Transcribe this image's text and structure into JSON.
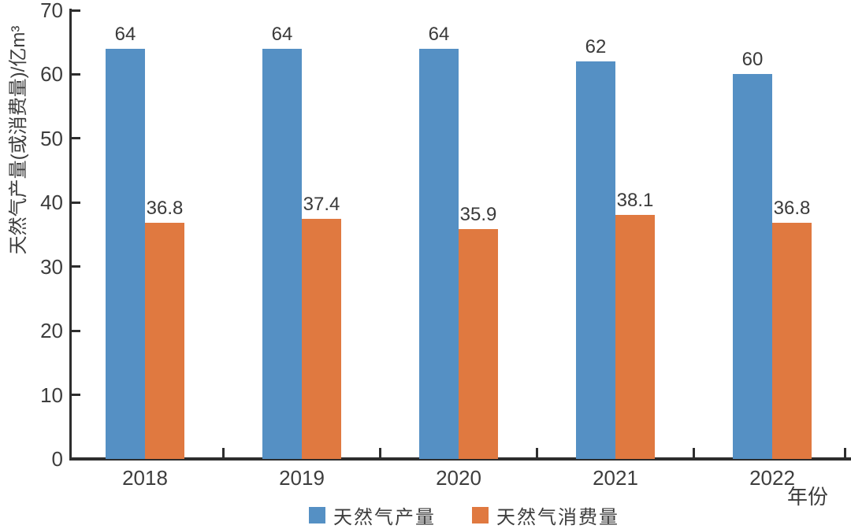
{
  "chart_data": {
    "type": "bar",
    "title": "",
    "categories": [
      "2018",
      "2019",
      "2020",
      "2021",
      "2022"
    ],
    "series": [
      {
        "name": "天然气产量",
        "color": "#5590C4",
        "values": [
          64,
          64,
          64,
          62,
          60
        ],
        "labels": [
          "64",
          "64",
          "64",
          "62",
          "60"
        ]
      },
      {
        "name": "天然气消费量",
        "color": "#E07940",
        "values": [
          36.8,
          37.4,
          35.9,
          38.1,
          36.8
        ],
        "labels": [
          "36.8",
          "37.4",
          "35.9",
          "38.1",
          "36.8"
        ]
      }
    ],
    "ylabel": "天然气产量(或消费量)/亿m³",
    "xlabel": "年份",
    "ylim": [
      0,
      70
    ],
    "yticks": [
      0,
      10,
      20,
      30,
      40,
      50,
      60,
      70
    ],
    "grid": false,
    "legend_position": "bottom",
    "axis_color": "#2e2e2e",
    "text_color": "#3d3d3d"
  }
}
